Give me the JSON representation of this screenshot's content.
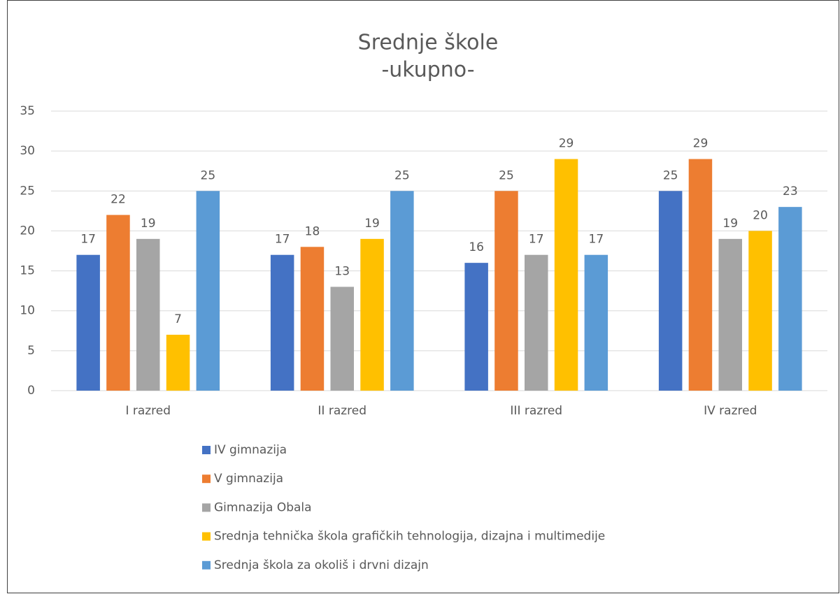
{
  "chart_data": {
    "type": "bar",
    "title": "Srednje škole",
    "subtitle": "-ukupno-",
    "categories": [
      "I razred",
      "II razred",
      "III razred",
      "IV razred"
    ],
    "series": [
      {
        "name": "IV gimnazija",
        "color": "#4472c4",
        "values": [
          17,
          17,
          16,
          25
        ]
      },
      {
        "name": "V gimnazija",
        "color": "#ed7d31",
        "values": [
          22,
          18,
          25,
          29
        ]
      },
      {
        "name": "Gimnazija Obala",
        "color": "#a5a5a5",
        "values": [
          19,
          13,
          17,
          19
        ]
      },
      {
        "name": "Srednja tehnička škola grafičkih tehnologija, dizajna i multimedije",
        "color": "#ffc000",
        "values": [
          7,
          19,
          29,
          20
        ]
      },
      {
        "name": "Srednja škola za okoliš i drvni dizajn",
        "color": "#5b9bd5",
        "values": [
          25,
          25,
          17,
          23
        ]
      }
    ],
    "ylim": [
      0,
      35
    ],
    "yticks": [
      0,
      5,
      10,
      15,
      20,
      25,
      30,
      35
    ],
    "grid": true,
    "legend": "bottom"
  }
}
